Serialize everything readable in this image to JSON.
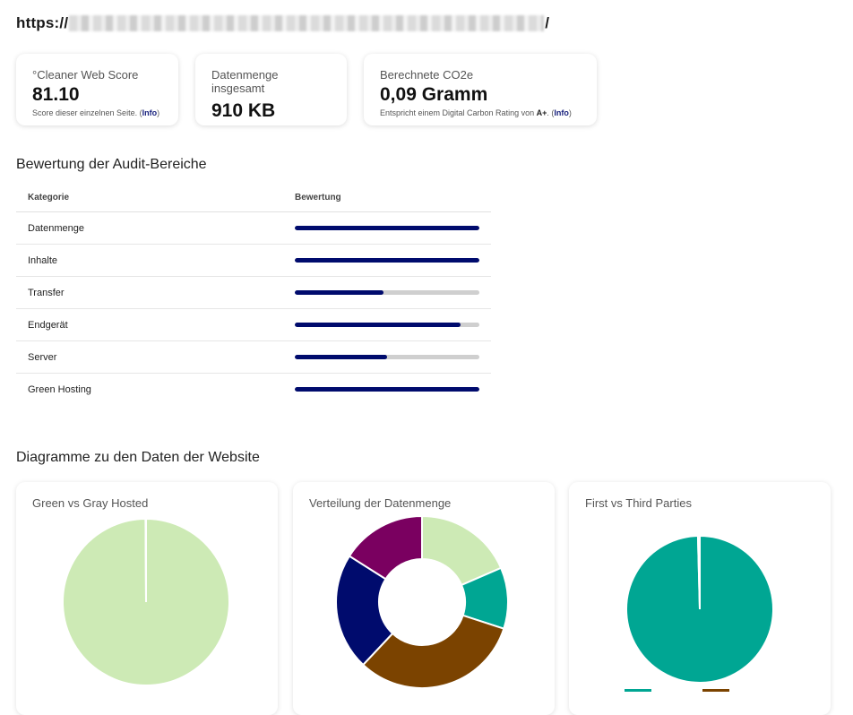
{
  "url": {
    "prefix": "https://",
    "suffix": "/"
  },
  "cards": [
    {
      "label": "°Cleaner Web Score",
      "value": "81.10",
      "note": "Score dieser einzelnen Seite. (",
      "link": "Info",
      "note_end": ")"
    },
    {
      "label": "Datenmenge insgesamt",
      "value": "910 KB"
    },
    {
      "label": "Berechnete CO2e",
      "value": "0,09 Gramm",
      "note": "Entspricht einem Digital Carbon Rating von ",
      "rating": "A+",
      "note_mid": ". (",
      "link": "Info",
      "note_end": ")"
    }
  ],
  "audit": {
    "heading": "Bewertung der Audit-Bereiche",
    "col_category": "Kategorie",
    "col_rating": "Bewertung",
    "rows": [
      {
        "category": "Datenmenge",
        "score": 1.0
      },
      {
        "category": "Inhalte",
        "score": 1.0
      },
      {
        "category": "Transfer",
        "score": 0.48
      },
      {
        "category": "Endgerät",
        "score": 0.9
      },
      {
        "category": "Server",
        "score": 0.5
      },
      {
        "category": "Green Hosting",
        "score": 1.0
      }
    ]
  },
  "charts_heading": "Diagramme zu den Daten der Website",
  "chart_data": [
    {
      "type": "pie",
      "title": "Green vs Gray Hosted",
      "values": [
        99.9,
        0.1
      ],
      "colors": [
        "#cdeab5",
        "#9e9e9e"
      ]
    },
    {
      "type": "pie",
      "title": "Verteilung der Datenmenge",
      "donut": true,
      "values": [
        18.5,
        11.5,
        32,
        22,
        16
      ],
      "colors": [
        "#cdeab5",
        "#00a693",
        "#7b4300",
        "#000b6d",
        "#7a0060"
      ]
    },
    {
      "type": "pie",
      "title": "First vs Third Parties",
      "values": [
        99.6,
        0.4
      ],
      "colors": [
        "#00a693",
        "#7b4300"
      ],
      "legend_position": "bottom"
    }
  ],
  "colors": {
    "bar_fill": "#000b6d",
    "bar_track": "#cfcfcf",
    "link": "#1a237e"
  }
}
